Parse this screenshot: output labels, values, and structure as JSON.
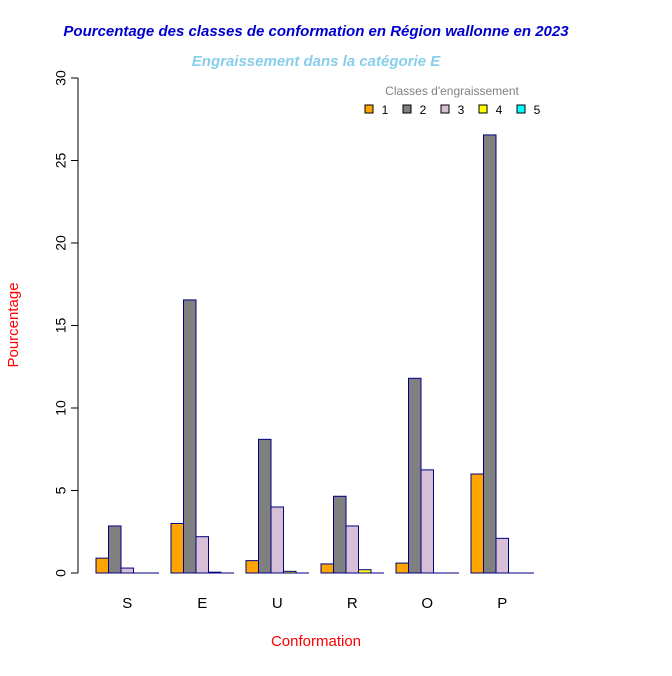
{
  "chart_data": {
    "type": "bar",
    "title": "Pourcentage des classes de conformation en Région wallonne en 2023",
    "subtitle": "Engraissement dans la catégorie E",
    "xlabel": "Conformation",
    "ylabel": "Pourcentage",
    "ylim": [
      0,
      30
    ],
    "yticks": [
      "0",
      "5",
      "10",
      "15",
      "20",
      "25",
      "30"
    ],
    "categories": [
      "S",
      "E",
      "U",
      "R",
      "O",
      "P"
    ],
    "legend_title": "Classes d'engraissement",
    "legend_position": "top-right",
    "series": [
      {
        "name": "1",
        "color": "#FFA500",
        "values": [
          0.9,
          3.0,
          0.75,
          0.55,
          0.6,
          6.0
        ]
      },
      {
        "name": "2",
        "color": "#808080",
        "values": [
          2.85,
          16.55,
          8.1,
          4.65,
          11.8,
          26.55
        ]
      },
      {
        "name": "3",
        "color": "#D8BFD8",
        "values": [
          0.3,
          2.2,
          4.0,
          2.85,
          6.25,
          2.1
        ]
      },
      {
        "name": "4",
        "color": "#FFFF00",
        "values": [
          0,
          0.05,
          0.1,
          0.2,
          0,
          0
        ]
      },
      {
        "name": "5",
        "color": "#00FFFF",
        "values": [
          0,
          0,
          0,
          0,
          0,
          0
        ]
      }
    ],
    "colors": {
      "title": "#0000CD",
      "subtitle": "#87CEEB",
      "axis_labels": "#FF0000",
      "bar_border": "#000080"
    }
  }
}
